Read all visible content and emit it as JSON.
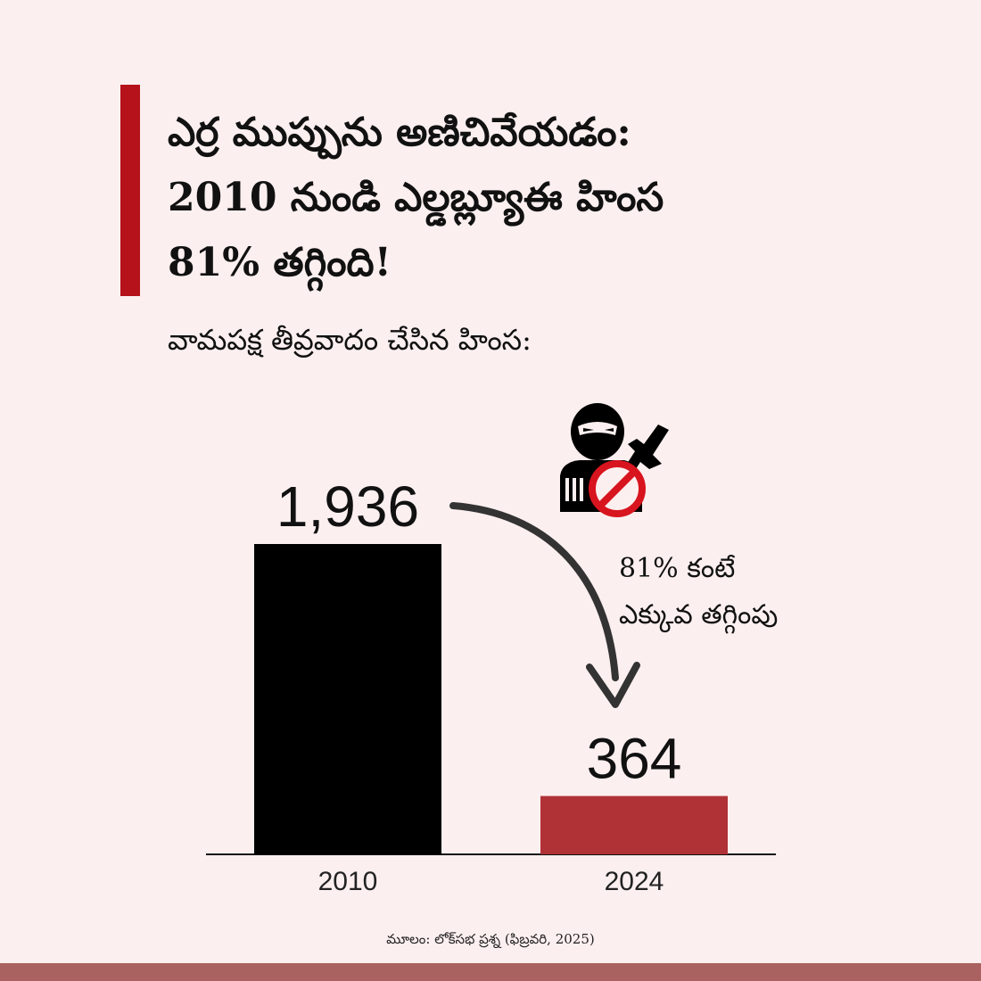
{
  "header": {
    "title_lines": [
      "ఎర్ర ముప్పును అణిచివేయడం:",
      "2010 నుండి ఎల్డబ్ల్యూఈ హింస",
      "81% తగ్గింది!"
    ],
    "subtitle": "వామపక్ష తీవ్రవాదం చేసిన హింస:"
  },
  "annotation": {
    "line1": "81% కంటే",
    "line2": "ఎక్కువ తగ్గింపు"
  },
  "icon": {
    "name": "militant-prohibited-icon",
    "prohibit_color": "#d8141e"
  },
  "source": "మూలం: లోక్‌సభ ప్రశ్న (ఫిబ్రవరి, 2025)",
  "colors": {
    "accent": "#b5121b",
    "bar_2010": "#000000",
    "bar_2024": "#b03236",
    "background": "#fcefef",
    "bottom_band": "#a9625f"
  },
  "chart_data": {
    "type": "bar",
    "categories": [
      "2010",
      "2024"
    ],
    "values": [
      1936,
      364
    ],
    "value_labels": [
      "1,936",
      "364"
    ],
    "colors": [
      "#000000",
      "#b03236"
    ],
    "ylim": [
      0,
      1936
    ],
    "grid": false
  }
}
